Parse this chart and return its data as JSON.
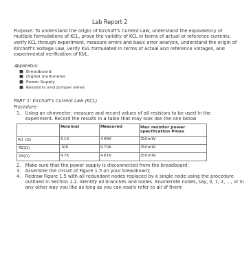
{
  "title": "Lab Report 2",
  "purpose": "Purpose: To understand the origin of Kirchoff's Current Law, understand the equivalency of\nmultiple formulations of KCL, prove the validity of KCL in terms of actual or reference currents,\nverify KCL through experiment, measure errors and basic error analysis, understand the origin of\nKirchoff's Voltage Law, verify KVL formulated in terms of actual and reference voltages, and\nexperimental verification of KVL.",
  "apparatus_title": "Apparatus:",
  "apparatus_items": [
    "Breadboard",
    "Digital multimeter",
    "Power Supply",
    "Resistors and Jumper wires"
  ],
  "part1_title": "PART 1: Kirchoff's Current Law (KCL)",
  "procedure_title": "Procedure:",
  "proc1_line1": "1.   Using an ohmmeter, measure and record values of all resistors to be used in the",
  "proc1_line2": "      experiment. Record the results in a table that may look like the one below",
  "table_headers": [
    "",
    "Nominal",
    "Measured",
    "Max resistor power\nspecification Pmax"
  ],
  "table_rows": [
    [
      "R1 (Ω)",
      "5.1K",
      "4.99K",
      "250mW"
    ],
    [
      "R2(Ω)",
      "10K",
      "9.70K",
      "250mW"
    ],
    [
      "R3(Ω)",
      "4.7K",
      "4.61K",
      "250mW"
    ]
  ],
  "proc2": "2.   Make sure that the power supply is disconnected from the breadboard;",
  "proc3": "3.   Assemble the circuit of Figure 1.5 on your breadboard;",
  "proc4_line1": "4.   Redraw Figure 1.5 with all redundant nodes replaced by a single node using the procedure",
  "proc4_line2": "      outlined in Section 1.2. Identify all branches and nodes. Enumerate nodes, say, 0, 1, 2, ..., or in",
  "proc4_line3": "      any other way you like as long as you can easily refer to all of them;",
  "bg_color": "#ffffff",
  "text_color": "#333333",
  "font_size": 4.8,
  "title_font_size": 5.8
}
